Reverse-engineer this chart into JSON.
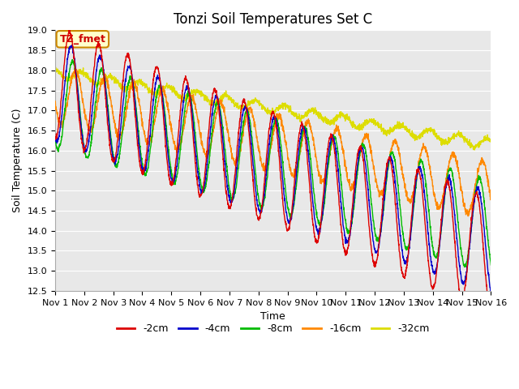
{
  "title": "Tonzi Soil Temperatures Set C",
  "xlabel": "Time",
  "ylabel": "Soil Temperature (C)",
  "ylim": [
    12.5,
    19.0
  ],
  "xlim": [
    0,
    15
  ],
  "x_tick_labels": [
    "Nov 1",
    "Nov 2",
    "Nov 3",
    "Nov 4",
    "Nov 5",
    "Nov 6",
    "Nov 7",
    "Nov 8",
    "Nov 9",
    "Nov 10",
    "Nov 11",
    "Nov 12",
    "Nov 13",
    "Nov 14",
    "Nov 15",
    "Nov 16"
  ],
  "legend_labels": [
    "-2cm",
    "-4cm",
    "-8cm",
    "-16cm",
    "-32cm"
  ],
  "legend_colors": [
    "#dd0000",
    "#0000cc",
    "#00bb00",
    "#ff8800",
    "#dddd00"
  ],
  "annotation_text": "TZ_fmet",
  "annotation_bg": "#ffffcc",
  "annotation_border": "#cc8800",
  "plot_bg": "#e8e8e8",
  "grid_color": "#ffffff",
  "title_fontsize": 12,
  "axis_fontsize": 9,
  "tick_fontsize": 8
}
